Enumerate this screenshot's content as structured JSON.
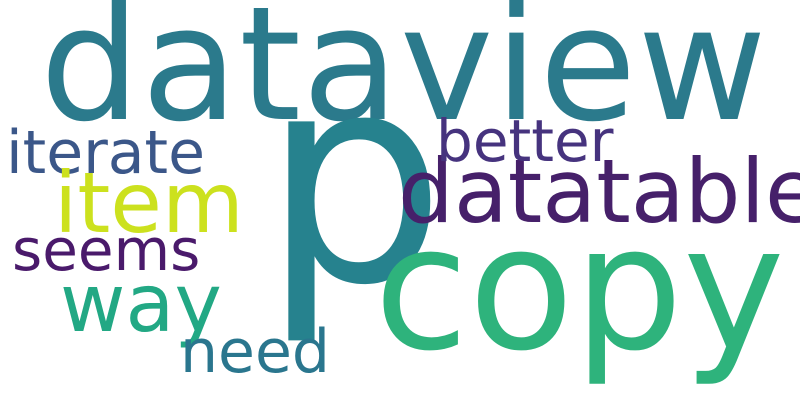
{
  "words": [
    {
      "text": "dataview",
      "color": "#2b7a8c"
    },
    {
      "text": "p",
      "color": "#26828e"
    },
    {
      "text": "copy",
      "color": "#2eb37c"
    },
    {
      "text": "datatable",
      "color": "#46206a"
    },
    {
      "text": "better",
      "color": "#46337e"
    },
    {
      "text": "iterate",
      "color": "#3b5789"
    },
    {
      "text": "item",
      "color": "#cce11e"
    },
    {
      "text": "seems",
      "color": "#4a1a6b"
    },
    {
      "text": "way",
      "color": "#22a884"
    },
    {
      "text": "need",
      "color": "#2a768e"
    }
  ]
}
